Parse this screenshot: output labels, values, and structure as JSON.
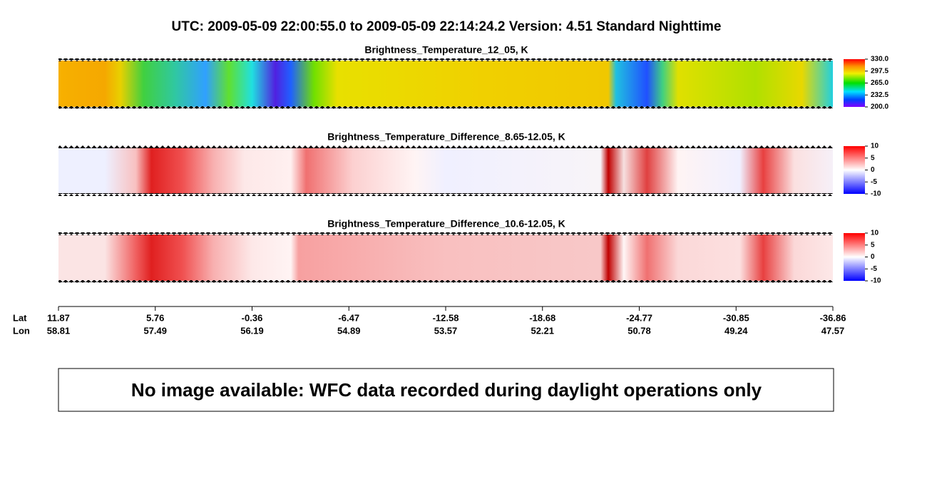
{
  "title": "UTC:  2009-05-09   22:00:55.0  to  2009-05-09   22:14:24.2    Version: 4.51  Standard Nighttime",
  "panels": [
    {
      "title": "Brightness_Temperature_12_05, K",
      "range": [
        200,
        330
      ],
      "ticks": [
        {
          "value": 330,
          "label": "330.0"
        },
        {
          "value": 297.5,
          "label": "297.5"
        },
        {
          "value": 265,
          "label": "265.0"
        },
        {
          "value": 232.5,
          "label": "232.5"
        },
        {
          "value": 200,
          "label": "200.0"
        }
      ]
    },
    {
      "title": "Brightness_Temperature_Difference_8.65-12.05, K",
      "range": [
        -10,
        10
      ],
      "ticks": [
        10,
        5,
        0,
        -5,
        -10
      ]
    },
    {
      "title": "Brightness_Temperature_Difference_10.6-12.05, K",
      "range": [
        -10,
        10
      ],
      "ticks": [
        10,
        5,
        0,
        -5,
        -10
      ]
    }
  ],
  "axis": {
    "row_labels": [
      "Lat",
      "Lon"
    ],
    "ticks": [
      {
        "lat": "11.87",
        "lon": "58.81"
      },
      {
        "lat": "5.76",
        "lon": "57.49"
      },
      {
        "lat": "-0.36",
        "lon": "56.19"
      },
      {
        "lat": "-6.47",
        "lon": "54.89"
      },
      {
        "lat": "-12.58",
        "lon": "53.57"
      },
      {
        "lat": "-18.68",
        "lon": "52.21"
      },
      {
        "lat": "-24.77",
        "lon": "50.78"
      },
      {
        "lat": "-30.85",
        "lon": "49.24"
      },
      {
        "lat": "-36.86",
        "lon": "47.57"
      }
    ]
  },
  "message": "No image available: WFC data recorded during daylight operations only"
}
